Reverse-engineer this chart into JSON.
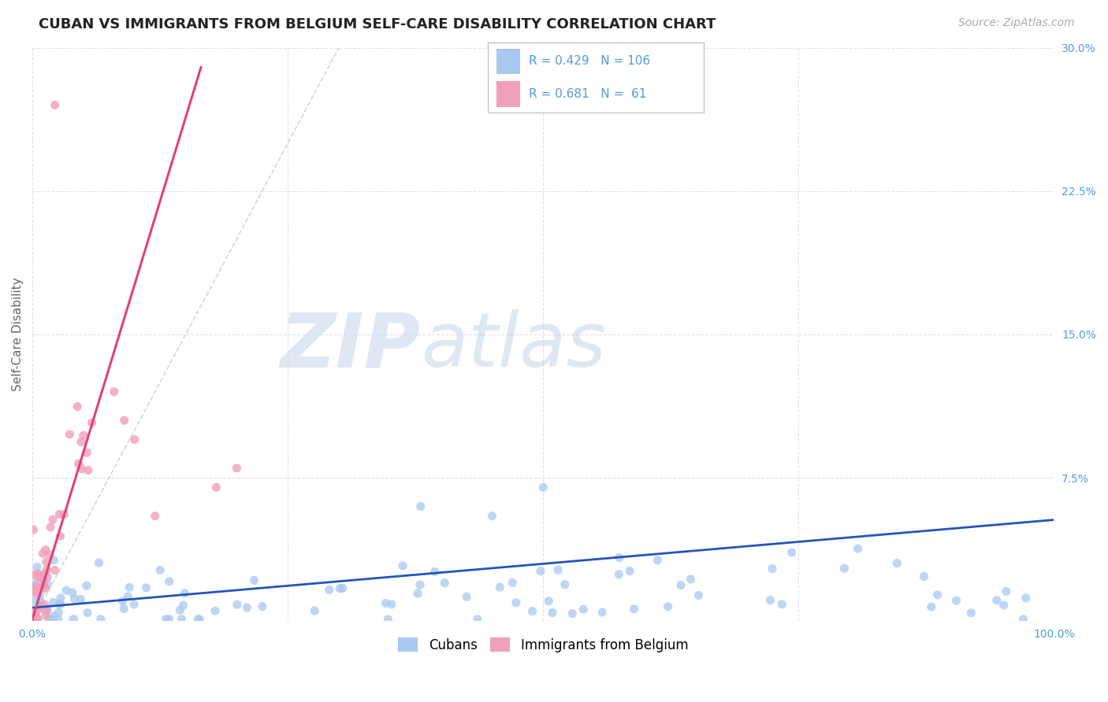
{
  "title": "CUBAN VS IMMIGRANTS FROM BELGIUM SELF-CARE DISABILITY CORRELATION CHART",
  "source": "Source: ZipAtlas.com",
  "ylabel": "Self-Care Disability",
  "xlim": [
    0,
    1.0
  ],
  "ylim": [
    0,
    0.3
  ],
  "watermark_zip": "ZIP",
  "watermark_atlas": "atlas",
  "legend_label1": "Cubans",
  "legend_label2": "Immigrants from Belgium",
  "R1": 0.429,
  "N1": 106,
  "R2": 0.681,
  "N2": 61,
  "color1": "#a8c8f0",
  "color2": "#f0a0b8",
  "trendline1_color": "#2255bb",
  "trendline2_color": "#dd4477",
  "ref_line_color": "#cccccc",
  "background_color": "#ffffff",
  "title_color": "#222222",
  "axis_color": "#5599dd",
  "grid_color": "#e0e0e0",
  "title_fontsize": 13,
  "source_fontsize": 10,
  "watermark_color": "#d0dff5",
  "tick_fontsize": 10
}
